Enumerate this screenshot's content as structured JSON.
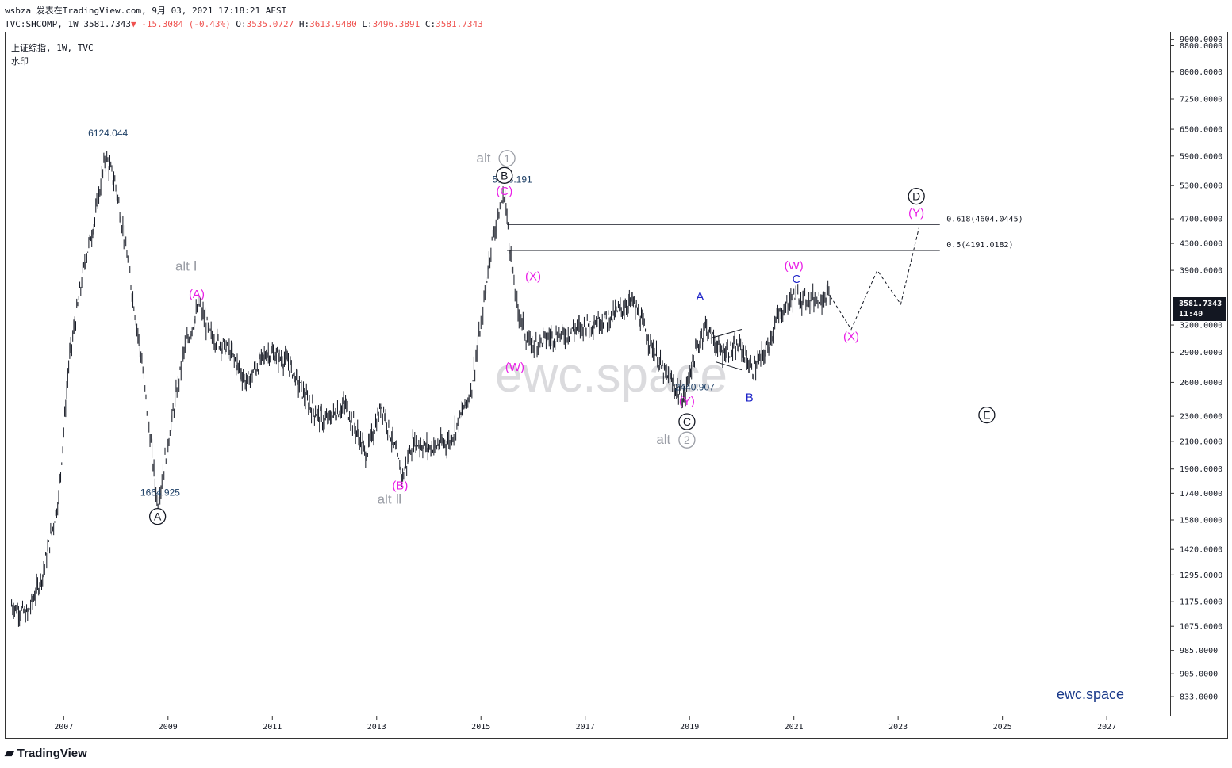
{
  "header": {
    "line1": "wsbza 发表在TradingView.com, 9月 03, 2021 17:18:21 AEST",
    "symbol_line": "TVC:SHCOMP, 1W 3581.7343",
    "change": "▼ -15.3084 (-0.43%)",
    "o_label": "O:",
    "o_val": "3535.0727",
    "h_label": "H:",
    "h_val": "3613.9480",
    "l_label": "L:",
    "l_val": "3496.3891",
    "c_label": "C:",
    "c_val": "3581.7343"
  },
  "legend": {
    "symbol": "上证综指, 1W, TVC",
    "watermark_label": "水印"
  },
  "price_tag": {
    "price": "3581.7343",
    "countdown": "11:40"
  },
  "watermark": "ewc.space",
  "brand": "ewc.space",
  "logo": "TradingView",
  "colors": {
    "candle": "#131722",
    "magenta": "#e91ee6",
    "blue": "#1e24c8",
    "gray": "#9b9ea6",
    "navy": "#1d3f66"
  },
  "chart_data": {
    "type": "line",
    "y_scale": "log",
    "ylim": [
      780,
      9200
    ],
    "xlim": [
      2005.9,
      2028.2
    ],
    "y_ticks": [
      "9000.0000",
      "8800.0000",
      "8000.0000",
      "7250.0000",
      "6500.0000",
      "5900.0000",
      "5300.0000",
      "4700.0000",
      "4300.0000",
      "3900.0000",
      "3200.0000",
      "2900.0000",
      "2600.0000",
      "2300.0000",
      "2100.0000",
      "1900.0000",
      "1740.0000",
      "1580.0000",
      "1420.0000",
      "1295.0000",
      "1175.0000",
      "1075.0000",
      "985.0000",
      "905.0000",
      "833.0000"
    ],
    "x_ticks": [
      "2007",
      "2009",
      "2011",
      "2013",
      "2015",
      "2017",
      "2019",
      "2021",
      "2023",
      "2025",
      "2027"
    ],
    "series": [
      {
        "x": [
          2006.0,
          2006.3,
          2006.6,
          2006.9,
          2007.1,
          2007.4,
          2007.6,
          2007.8,
          2008.0,
          2008.2,
          2008.5,
          2008.8,
          2009.0,
          2009.3,
          2009.6,
          2009.8,
          2010.2,
          2010.5,
          2010.9,
          2011.3,
          2011.7,
          2012.0,
          2012.4,
          2012.8,
          2013.1,
          2013.5,
          2013.7,
          2014.0,
          2014.4,
          2014.8,
          2015.0,
          2015.2,
          2015.45,
          2015.6,
          2015.7,
          2015.9,
          2016.1,
          2016.2,
          2016.6,
          2017.0,
          2017.5,
          2017.9,
          2018.1,
          2018.5,
          2018.9,
          2019.0,
          2019.3,
          2019.6,
          2020.0,
          2020.2,
          2020.5,
          2020.7,
          2021.0,
          2021.3,
          2021.6,
          2021.7
        ],
        "y": [
          1160,
          1120,
          1300,
          1700,
          2800,
          4000,
          4700,
          5900,
          5300,
          4200,
          2800,
          1665,
          2100,
          2900,
          3450,
          3100,
          2900,
          2600,
          2900,
          2800,
          2400,
          2250,
          2400,
          2000,
          2400,
          1850,
          2100,
          2050,
          2100,
          2500,
          3200,
          4300,
          5178,
          3900,
          3400,
          3000,
          3000,
          3050,
          3100,
          3200,
          3300,
          3500,
          3200,
          2700,
          2441,
          2700,
          3200,
          2900,
          2950,
          2700,
          2950,
          3300,
          3550,
          3500,
          3550,
          3582
        ]
      }
    ],
    "fib_levels": [
      {
        "ratio_label": "0.618(4604.0445)",
        "value": 4604.0445
      },
      {
        "ratio_label": "0.5(4191.0182)",
        "value": 4191.0182
      }
    ],
    "projection": {
      "x": [
        2021.7,
        2022.1,
        2022.6,
        2023.05,
        2023.4
      ],
      "y": [
        3550,
        3150,
        3900,
        3450,
        4550
      ]
    },
    "price_labels": [
      {
        "text": "6124.044",
        "x": 2007.85,
        "y": 6124.044
      },
      {
        "text": "1664.925",
        "x": 2008.85,
        "y": 1664.925
      },
      {
        "text": "5178.191",
        "x": 2015.6,
        "y": 5178.191
      },
      {
        "text": "2440.907",
        "x": 2019.1,
        "y": 2440.907
      }
    ],
    "annotations": [
      {
        "text": "alt Ⅰ",
        "color": "gray",
        "x": 2009.35,
        "y": 3950
      },
      {
        "text": "(A)",
        "color": "magenta",
        "x": 2009.55,
        "y": 3580
      },
      {
        "text": "A",
        "color": "circle",
        "x": 2008.8,
        "y": 1600
      },
      {
        "text": "(B)",
        "color": "magenta",
        "x": 2013.45,
        "y": 1790
      },
      {
        "text": "alt Ⅱ",
        "color": "gray",
        "x": 2013.25,
        "y": 1700
      },
      {
        "text": "alt",
        "color": "gray",
        "x": 2015.05,
        "y": 5850
      },
      {
        "text": "1",
        "color": "graycircle",
        "x": 2015.5,
        "y": 5850
      },
      {
        "text": "B",
        "color": "circle",
        "x": 2015.45,
        "y": 5500
      },
      {
        "text": "(C)",
        "color": "magenta",
        "x": 2015.45,
        "y": 5200
      },
      {
        "text": "(X)",
        "color": "magenta",
        "x": 2016.0,
        "y": 3820
      },
      {
        "text": "(W)",
        "color": "magenta",
        "x": 2015.65,
        "y": 2750
      },
      {
        "text": "A",
        "color": "blue",
        "x": 2019.2,
        "y": 3550
      },
      {
        "text": "(Y)",
        "color": "magenta",
        "x": 2018.95,
        "y": 2430
      },
      {
        "text": "C",
        "color": "circle",
        "x": 2018.95,
        "y": 2255
      },
      {
        "text": "alt",
        "color": "gray",
        "x": 2018.5,
        "y": 2110
      },
      {
        "text": "2",
        "color": "graycircle",
        "x": 2018.95,
        "y": 2110
      },
      {
        "text": "B",
        "color": "blue",
        "x": 2020.15,
        "y": 2460
      },
      {
        "text": "(W)",
        "color": "magenta",
        "x": 2021.0,
        "y": 3970
      },
      {
        "text": "C",
        "color": "blue",
        "x": 2021.05,
        "y": 3780
      },
      {
        "text": "(X)",
        "color": "magenta",
        "x": 2022.1,
        "y": 3070
      },
      {
        "text": "D",
        "color": "circle",
        "x": 2023.35,
        "y": 5100
      },
      {
        "text": "(Y)",
        "color": "magenta",
        "x": 2023.35,
        "y": 4800
      },
      {
        "text": "E",
        "color": "circle",
        "x": 2024.7,
        "y": 2310
      }
    ]
  }
}
